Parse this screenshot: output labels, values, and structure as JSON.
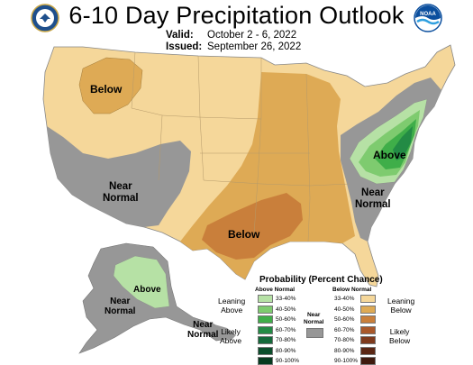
{
  "title": "6-10 Day Precipitation Outlook",
  "valid_label": "Valid:",
  "valid_value": "October 2 - 6, 2022",
  "issued_label": "Issued:",
  "issued_value": "September 26, 2022",
  "logos": {
    "left": "commerce-seal-icon",
    "right": "noaa-logo-icon",
    "right_text": "NOAA"
  },
  "colors": {
    "below_33_40": "#f5d79a",
    "below_40_50": "#deaa55",
    "below_50_60": "#c97f3b",
    "below_60_70": "#a9582a",
    "below_70_80": "#7e3a1d",
    "below_80_90": "#5a2614",
    "below_90_100": "#3e1a0e",
    "above_33_40": "#b6e1a5",
    "above_40_50": "#7ecb6f",
    "above_50_60": "#3fae49",
    "above_60_70": "#238b45",
    "above_70_80": "#14693a",
    "above_80_90": "#0b4d2b",
    "above_90_100": "#063a1f",
    "near_normal": "#979797"
  },
  "map_labels": {
    "below_northwest": "Below",
    "below_south": "Below",
    "above_east": "Above",
    "near_normal_west_1": "Near",
    "near_normal_west_2": "Normal",
    "near_normal_east_1": "Near",
    "near_normal_east_2": "Normal",
    "above_alaska": "Above",
    "near_normal_alaska_1": "Near",
    "near_normal_alaska_2": "Normal",
    "near_normal_se_alaska_1": "Near",
    "near_normal_se_alaska_2": "Normal"
  },
  "legend": {
    "title": "Probability (Percent Chance)",
    "above_header": "Above Normal",
    "below_header": "Below Normal",
    "near_header_1": "Near",
    "near_header_2": "Normal",
    "leaning_above_1": "Leaning",
    "leaning_above_2": "Above",
    "likely_above_1": "Likely",
    "likely_above_2": "Above",
    "leaning_below_1": "Leaning",
    "leaning_below_2": "Below",
    "likely_below_1": "Likely",
    "likely_below_2": "Below",
    "ranges": [
      "33-40%",
      "40-50%",
      "50-60%",
      "60-70%",
      "70-80%",
      "80-90%",
      "90-100%"
    ]
  }
}
